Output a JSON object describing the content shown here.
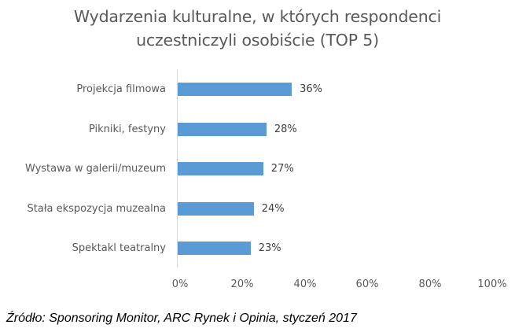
{
  "chart": {
    "title_line1": "Wydarzenia kulturalne, w których respondenci",
    "title_line2": "uczestniczyli osobiście (TOP 5)",
    "bar_color": "#5b9bd5",
    "bars": [
      {
        "label": "Projekcja filmowa",
        "value": 36,
        "value_label": "36%"
      },
      {
        "label": "Pikniki, festyny",
        "value": 28,
        "value_label": "28%"
      },
      {
        "label": "Wystawa w galerii/muzeum",
        "value": 27,
        "value_label": "27%"
      },
      {
        "label": "Stała ekspozycja muzealna",
        "value": 24,
        "value_label": "24%"
      },
      {
        "label": "Spektakl teatralny",
        "value": 23,
        "value_label": "23%"
      }
    ],
    "x_ticks": [
      "0%",
      "20%",
      "40%",
      "60%",
      "80%",
      "100%"
    ]
  },
  "source": "Źródło: Sponsoring Monitor, ARC Rynek i Opinia, styczeń 2017",
  "chart_data": {
    "type": "bar",
    "orientation": "horizontal",
    "title": "Wydarzenia kulturalne, w których respondenci uczestniczyli osobiście (TOP 5)",
    "categories": [
      "Projekcja filmowa",
      "Pikniki, festyny",
      "Wystawa w galerii/muzeum",
      "Stała ekspozycja muzealna",
      "Spektakl teatralny"
    ],
    "values": [
      36,
      28,
      27,
      24,
      23
    ],
    "value_format": "percent",
    "xlabel": "",
    "ylabel": "",
    "xlim": [
      0,
      100
    ],
    "x_ticks": [
      "0%",
      "20%",
      "40%",
      "60%",
      "80%",
      "100%"
    ],
    "grid": false,
    "legend": null,
    "data_labels": true,
    "annotation": "Źródło: Sponsoring Monitor, ARC Rynek i Opinia, styczeń 2017"
  }
}
